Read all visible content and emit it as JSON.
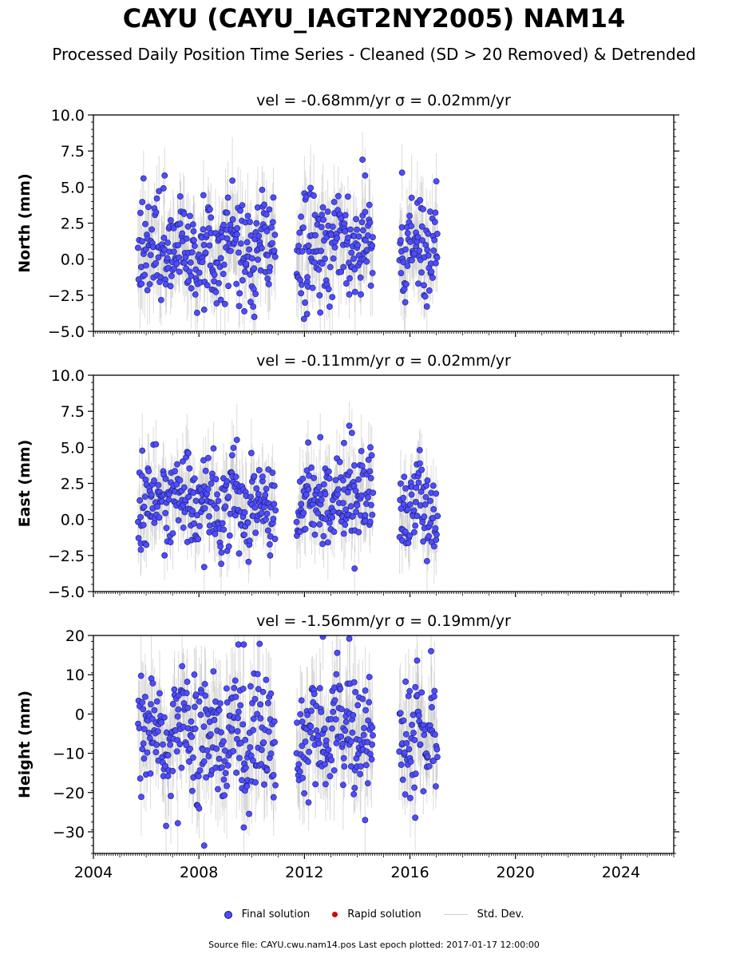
{
  "figure": {
    "title": "CAYU (CAYU_IAGT2NY2005) NAM14",
    "subtitle": "Processed Daily Position Time Series - Cleaned (SD > 20 Removed) & Detrended",
    "footer": "Source file: CAYU.cwu.nam14.pos  Last epoch plotted: 2017-01-17 12:00:00"
  },
  "legend": {
    "final": "Final solution",
    "rapid": "Rapid solution",
    "std": "Std. Dev."
  },
  "colors": {
    "final_fill": "#4d4dff",
    "final_edge": "#1a1a66",
    "rapid": "#dd0000",
    "std_dev": "#b0b0b0"
  },
  "chart_data": [
    {
      "type": "scatter",
      "panel": "north",
      "title": "vel = -0.68mm/yr   σ = 0.02mm/yr",
      "ylabel": "North (mm)",
      "ylim": [
        -5.0,
        10.0
      ],
      "yticks": [
        -5.0,
        -2.5,
        0.0,
        2.5,
        5.0,
        7.5,
        10.0
      ],
      "ytick_labels": [
        "−5.0",
        "−2.5",
        "0.0",
        "2.5",
        "5.0",
        "7.5",
        "10.0"
      ],
      "xlim": [
        2004,
        2026
      ],
      "data_windows": [
        [
          2005.7,
          2010.9
        ],
        [
          2011.7,
          2014.6
        ],
        [
          2015.6,
          2017.05
        ]
      ],
      "typical_range": [
        -2.5,
        4.0
      ],
      "notable_points": [
        {
          "x": 2005.9,
          "y": 5.6
        },
        {
          "x": 2006.7,
          "y": 5.8
        },
        {
          "x": 2014.2,
          "y": 6.9
        },
        {
          "x": 2014.3,
          "y": 5.8
        },
        {
          "x": 2015.7,
          "y": 6.0
        },
        {
          "x": 2017.0,
          "y": 5.4
        },
        {
          "x": 2008.2,
          "y": -3.5
        },
        {
          "x": 2010.1,
          "y": -4.0
        },
        {
          "x": 2012.1,
          "y": -3.8
        },
        {
          "x": 2012.6,
          "y": -3.7
        }
      ]
    },
    {
      "type": "scatter",
      "panel": "east",
      "title": "vel = -0.11mm/yr   σ = 0.02mm/yr",
      "ylabel": "East (mm)",
      "ylim": [
        -5.0,
        10.0
      ],
      "yticks": [
        -5.0,
        -2.5,
        0.0,
        2.5,
        5.0,
        7.5,
        10.0
      ],
      "ytick_labels": [
        "−5.0",
        "−2.5",
        "0.0",
        "2.5",
        "5.0",
        "7.5",
        "10.0"
      ],
      "xlim": [
        2004,
        2026
      ],
      "data_windows": [
        [
          2005.7,
          2010.9
        ],
        [
          2011.7,
          2014.6
        ],
        [
          2015.6,
          2017.05
        ]
      ],
      "typical_range": [
        -1.5,
        4.0
      ],
      "notable_points": [
        {
          "x": 2012.6,
          "y": 5.7
        },
        {
          "x": 2013.5,
          "y": 5.3
        },
        {
          "x": 2013.7,
          "y": 6.5
        },
        {
          "x": 2013.8,
          "y": 6.0
        },
        {
          "x": 2014.5,
          "y": 5.0
        },
        {
          "x": 2007.6,
          "y": 4.6
        },
        {
          "x": 2008.2,
          "y": -3.3
        },
        {
          "x": 2013.9,
          "y": -3.4
        },
        {
          "x": 2005.8,
          "y": -2.1
        },
        {
          "x": 2010.7,
          "y": -2.5
        }
      ]
    },
    {
      "type": "scatter",
      "panel": "height",
      "title": "vel = -1.56mm/yr   σ = 0.19mm/yr",
      "ylabel": "Height (mm)",
      "ylim": [
        -35.5,
        20.0
      ],
      "yticks": [
        -30,
        -20,
        -10,
        0,
        10,
        20
      ],
      "ytick_labels": [
        "−30",
        "−20",
        "−10",
        "0",
        "10",
        "20"
      ],
      "xlim": [
        2004,
        2026
      ],
      "xticks": [
        2004,
        2008,
        2012,
        2016,
        2020,
        2024
      ],
      "xtick_labels": [
        "2004",
        "2008",
        "2012",
        "2016",
        "2020",
        "2024"
      ],
      "data_windows": [
        [
          2005.7,
          2010.9
        ],
        [
          2011.7,
          2014.6
        ],
        [
          2015.6,
          2017.05
        ]
      ],
      "typical_range": [
        -20.0,
        8.0
      ],
      "notable_points": [
        {
          "x": 2009.5,
          "y": 17.7
        },
        {
          "x": 2009.7,
          "y": 17.7
        },
        {
          "x": 2012.7,
          "y": 19.7
        },
        {
          "x": 2013.7,
          "y": 19.2
        },
        {
          "x": 2016.8,
          "y": 16.0
        },
        {
          "x": 2008.2,
          "y": -33.5
        },
        {
          "x": 2007.2,
          "y": -27.8
        },
        {
          "x": 2009.7,
          "y": -28.9
        },
        {
          "x": 2016.2,
          "y": -26.4
        },
        {
          "x": 2014.3,
          "y": -27.0
        }
      ]
    }
  ]
}
